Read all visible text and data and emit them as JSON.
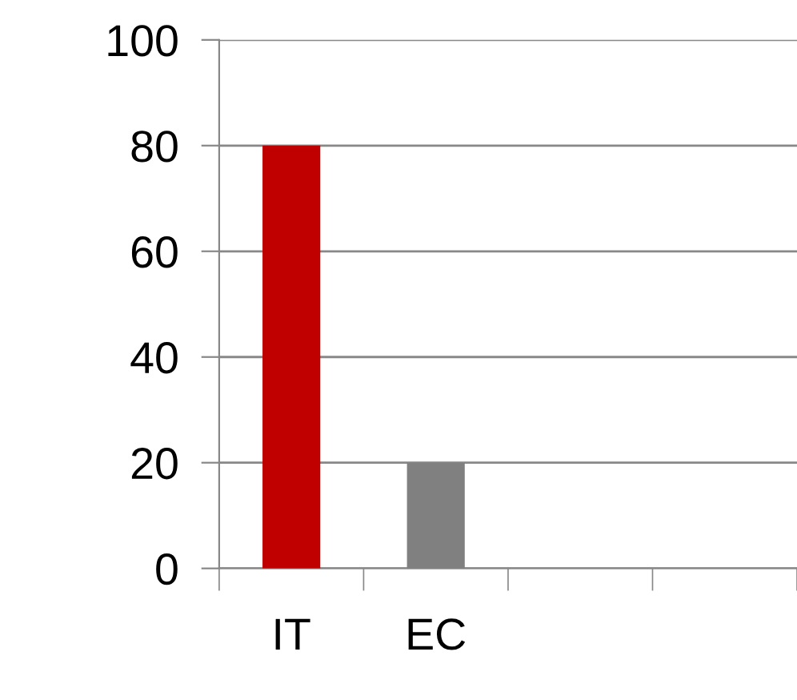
{
  "chart_data": {
    "type": "bar",
    "categories": [
      "IT",
      "EC",
      null,
      null
    ],
    "values": [
      80,
      20,
      null,
      null
    ],
    "colors": [
      "#c00000",
      "#808080",
      "#808080",
      "#808080"
    ],
    "ylim": [
      0,
      100
    ],
    "yticks": [
      0,
      20,
      40,
      60,
      80,
      100
    ],
    "grid": "y",
    "legend": false
  }
}
